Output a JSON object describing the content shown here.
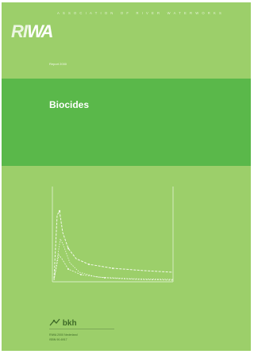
{
  "header": {
    "organization": "ASSOCIATION OF RIVER WATERWORKS",
    "logo_prefix": "RI",
    "logo_accent": "WA"
  },
  "report_label": "Report 2000",
  "title": "Biocides",
  "footer": {
    "publisher": "bkh",
    "line1": "RIWA 2000 Nederland",
    "line2": "ISBN 90-6917"
  },
  "colors": {
    "cover": "#9ccf6a",
    "band": "#5ab84a",
    "plot_lines": "#f2f8ea"
  }
}
